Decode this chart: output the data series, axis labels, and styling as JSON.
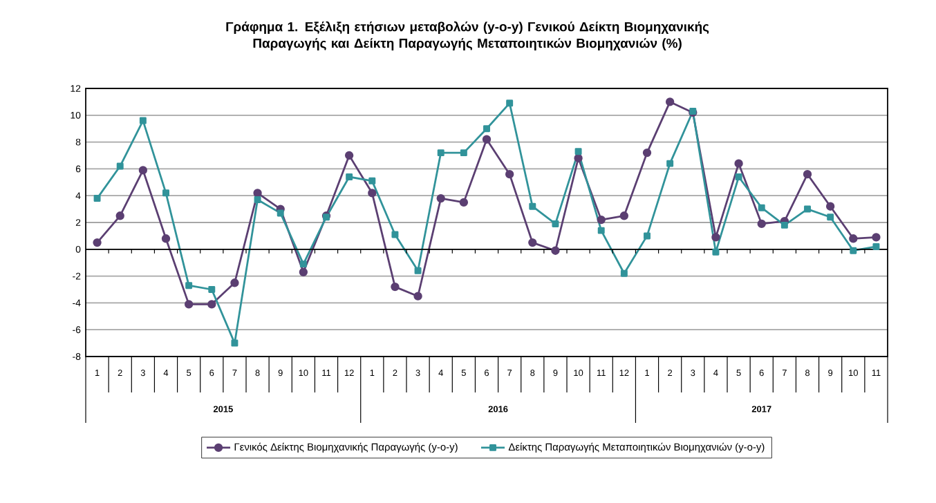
{
  "chart_data": {
    "type": "line",
    "title": "Γράφημα 1. Εξέλιξη ετήσιων μεταβολών (y-o-y) Γενικού Δείκτη Βιομηχανικής Παραγωγής και Δείκτη Παραγωγής Μεταποιητικών Βιομηχανιών (%)",
    "categories": [
      "1",
      "2",
      "3",
      "4",
      "5",
      "6",
      "7",
      "8",
      "9",
      "10",
      "11",
      "12",
      "1",
      "2",
      "3",
      "4",
      "5",
      "6",
      "7",
      "8",
      "9",
      "10",
      "11",
      "12",
      "1",
      "2",
      "3",
      "4",
      "5",
      "6",
      "7",
      "8",
      "9",
      "10",
      "11"
    ],
    "series": [
      {
        "name": "Γενικός Δείκτης Βιομηχανικής Παραγωγής (y-o-y)",
        "color": "#5b3f72",
        "marker": "circle",
        "values": [
          0.5,
          2.5,
          5.9,
          0.8,
          -4.1,
          -4.1,
          -2.5,
          4.2,
          3.0,
          -1.7,
          2.5,
          7.0,
          4.2,
          -2.8,
          -3.5,
          3.8,
          3.5,
          8.2,
          5.6,
          0.5,
          -0.1,
          6.8,
          2.2,
          2.5,
          7.2,
          11.0,
          10.2,
          0.9,
          6.4,
          1.9,
          2.1,
          5.6,
          3.2,
          0.8,
          0.9
        ]
      },
      {
        "name": "Δείκτης Παραγωγής Μεταποιητικών Βιομηχανιών (y-o-y)",
        "color": "#31939a",
        "marker": "square",
        "values": [
          3.8,
          6.2,
          9.6,
          4.2,
          -2.7,
          -3.0,
          -7.0,
          3.7,
          2.7,
          -1.1,
          2.4,
          5.4,
          5.1,
          1.1,
          -1.6,
          7.2,
          7.2,
          9.0,
          10.9,
          3.2,
          1.9,
          7.3,
          1.4,
          -1.8,
          1.0,
          6.4,
          10.3,
          -0.2,
          5.4,
          3.1,
          1.8,
          3.0,
          2.4,
          -0.1,
          0.2
        ]
      }
    ],
    "annotations": [
      "2015",
      "2016",
      "2017"
    ],
    "ylim": [
      -8,
      12
    ],
    "yticks": [
      -8,
      -6,
      -4,
      -2,
      0,
      2,
      4,
      6,
      8,
      10,
      12
    ],
    "grid": "y",
    "legend": "bottom",
    "line_style": "solid"
  }
}
